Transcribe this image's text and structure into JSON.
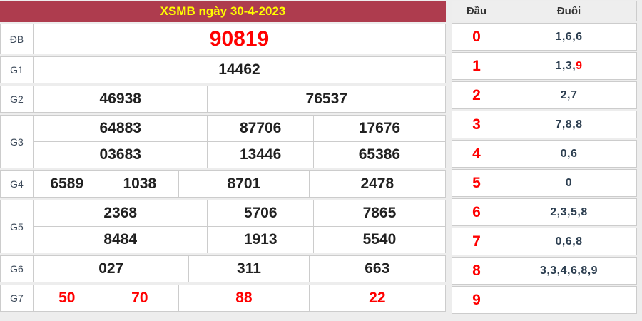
{
  "header": {
    "title": "XSMB ngày 30-4-2023"
  },
  "results": {
    "rows": [
      {
        "label": "ĐB",
        "type": "db",
        "layout": "c1",
        "lines": [
          [
            "90819"
          ]
        ]
      },
      {
        "label": "G1",
        "type": "",
        "layout": "c1",
        "lines": [
          [
            "14462"
          ]
        ]
      },
      {
        "label": "G2",
        "type": "",
        "layout": "c2",
        "lines": [
          [
            "46938",
            "76537"
          ]
        ]
      },
      {
        "label": "G3",
        "type": "",
        "layout": "c3",
        "lines": [
          [
            "64883",
            "87706",
            "17676"
          ],
          [
            "03683",
            "13446",
            "65386"
          ]
        ]
      },
      {
        "label": "G4",
        "type": "",
        "layout": "c4",
        "lines": [
          [
            "6589",
            "1038",
            "8701",
            "2478"
          ]
        ]
      },
      {
        "label": "G5",
        "type": "",
        "layout": "c3",
        "lines": [
          [
            "2368",
            "5706",
            "7865"
          ],
          [
            "8484",
            "1913",
            "5540"
          ]
        ]
      },
      {
        "label": "G6",
        "type": "",
        "layout": "c3b",
        "lines": [
          [
            "027",
            "311",
            "663"
          ]
        ]
      },
      {
        "label": "G7",
        "type": "red",
        "layout": "c4",
        "lines": [
          [
            "50",
            "70",
            "88",
            "22"
          ]
        ]
      }
    ]
  },
  "dau_duoi": {
    "col_dau": "Đầu",
    "col_duoi": "Đuôi",
    "rows": [
      {
        "digit": "0",
        "parts": [
          {
            "t": "1,6,6"
          }
        ]
      },
      {
        "digit": "1",
        "parts": [
          {
            "t": "1,3,"
          },
          {
            "t": "9",
            "red": true
          }
        ]
      },
      {
        "digit": "2",
        "parts": [
          {
            "t": "2,7"
          }
        ]
      },
      {
        "digit": "3",
        "parts": [
          {
            "t": "7,8,8"
          }
        ]
      },
      {
        "digit": "4",
        "parts": [
          {
            "t": "0,6"
          }
        ]
      },
      {
        "digit": "5",
        "parts": [
          {
            "t": "0"
          }
        ]
      },
      {
        "digit": "6",
        "parts": [
          {
            "t": "2,3,5,8"
          }
        ]
      },
      {
        "digit": "7",
        "parts": [
          {
            "t": "0,6,8"
          }
        ]
      },
      {
        "digit": "8",
        "parts": [
          {
            "t": "3,3,4,6,8,9"
          }
        ]
      },
      {
        "digit": "9",
        "parts": []
      }
    ]
  },
  "colors": {
    "header_bg": "#ae3c4e",
    "title_text": "#ffff00",
    "highlight_red": "#ff0000",
    "number_text": "#212121",
    "tail_text": "#2c3e50",
    "cell_border": "#cccccc",
    "page_bg": "#ededed",
    "table_head_bg": "#eeeeee"
  }
}
